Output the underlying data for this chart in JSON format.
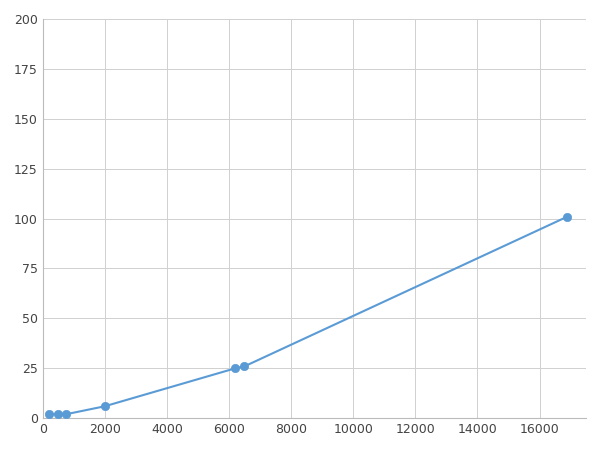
{
  "x": [
    200,
    500,
    750,
    2000,
    6200,
    6500,
    16900
  ],
  "y": [
    2,
    2,
    2,
    6,
    25,
    26,
    101
  ],
  "line_color": "#5b9bd5",
  "marker_color": "#5b9bd5",
  "marker_size": 6,
  "line_width": 1.5,
  "xlim": [
    0,
    17500
  ],
  "ylim": [
    0,
    200
  ],
  "xticks": [
    0,
    2000,
    4000,
    6000,
    8000,
    10000,
    12000,
    14000,
    16000
  ],
  "yticks": [
    0,
    25,
    50,
    75,
    100,
    125,
    150,
    175,
    200
  ],
  "grid_color": "#d0d0d0",
  "bg_color": "#ffffff",
  "fig_bg_color": "#ffffff",
  "figsize": [
    6.0,
    4.5
  ],
  "dpi": 100
}
